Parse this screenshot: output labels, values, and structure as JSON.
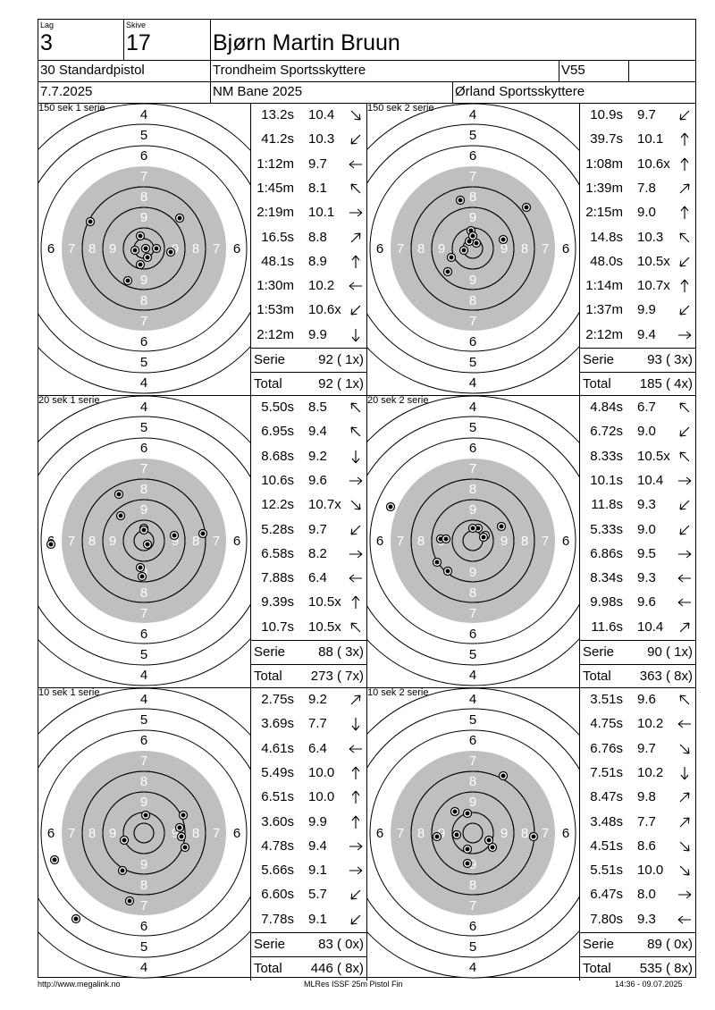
{
  "header": {
    "lag_label": "Lag",
    "lag_value": "3",
    "skive_label": "Skive",
    "skive_value": "17",
    "name": "Bjørn Martin Bruun",
    "class": "30 Standardpistol",
    "club": "Trondheim Sportsskyttere",
    "age_class": "V55",
    "date": "7.7.2025",
    "event": "NM Bane 2025",
    "organizer": "Ørland Sportsskyttere"
  },
  "ring_numbers": {
    "ring4": "4",
    "ring5": "5",
    "ring6": "6",
    "ring7": "7",
    "ring8": "8",
    "ring9": "9"
  },
  "series": [
    {
      "title": "150 sek 1 serie",
      "shots": [
        {
          "time": "13.2s",
          "value": "10.4",
          "dir": "down-right",
          "x": -4,
          "y": -14
        },
        {
          "time": "41.2s",
          "value": "10.3",
          "dir": "down-left",
          "x": -10,
          "y": 2
        },
        {
          "time": "1:12m",
          "value": "9.7",
          "dir": "left",
          "x": 30,
          "y": 4
        },
        {
          "time": "1:45m",
          "value": "8.1",
          "dir": "up-left",
          "x": -60,
          "y": -30
        },
        {
          "time": "2:19m",
          "value": "10.1",
          "dir": "right",
          "x": 14,
          "y": 0
        },
        {
          "time": "16.5s",
          "value": "8.8",
          "dir": "up-right",
          "x": 40,
          "y": -34
        },
        {
          "time": "48.1s",
          "value": "8.9",
          "dir": "up",
          "x": -18,
          "y": 36
        },
        {
          "time": "1:30m",
          "value": "10.2",
          "dir": "left",
          "x": -4,
          "y": 18
        },
        {
          "time": "1:53m",
          "value": "10.6x",
          "dir": "down-left",
          "x": 2,
          "y": 0
        },
        {
          "time": "2:12m",
          "value": "9.9",
          "dir": "down",
          "x": 4,
          "y": 10
        }
      ],
      "serie_label": "Serie",
      "serie_score": "92 ( 1x)",
      "total_label": "Total",
      "total_score": "92 ( 1x)"
    },
    {
      "title": "150 sek 2 serie",
      "shots": [
        {
          "time": "10.9s",
          "value": "9.7",
          "dir": "down-left",
          "x": -28,
          "y": 26
        },
        {
          "time": "39.7s",
          "value": "10.1",
          "dir": "up",
          "x": 34,
          "y": -10
        },
        {
          "time": "1:08m",
          "value": "10.6x",
          "dir": "up",
          "x": 4,
          "y": -6
        },
        {
          "time": "1:39m",
          "value": "7.8",
          "dir": "up-right",
          "x": 60,
          "y": -46
        },
        {
          "time": "2:15m",
          "value": "9.0",
          "dir": "up",
          "x": -14,
          "y": -54
        },
        {
          "time": "14.8s",
          "value": "10.3",
          "dir": "up-left",
          "x": -4,
          "y": -8
        },
        {
          "time": "48.0s",
          "value": "10.5x",
          "dir": "down-left",
          "x": -10,
          "y": 2
        },
        {
          "time": "1:14m",
          "value": "10.7x",
          "dir": "up",
          "x": -2,
          "y": -20
        },
        {
          "time": "1:37m",
          "value": "9.9",
          "dir": "down-left",
          "x": -24,
          "y": 10
        },
        {
          "time": "2:12m",
          "value": "9.4",
          "dir": "right",
          "x": 0,
          "y": -14
        }
      ],
      "serie_label": "Serie",
      "serie_score": "93 ( 3x)",
      "total_label": "Total",
      "total_score": "185 ( 4x)"
    },
    {
      "title": "20 sek 1 serie",
      "shots": [
        {
          "time": "5.50s",
          "value": "8.5",
          "dir": "up-left",
          "x": -28,
          "y": -52
        },
        {
          "time": "6.95s",
          "value": "9.4",
          "dir": "up-left",
          "x": -26,
          "y": -28
        },
        {
          "time": "8.68s",
          "value": "9.2",
          "dir": "down",
          "x": -4,
          "y": 30
        },
        {
          "time": "10.6s",
          "value": "9.6",
          "dir": "right",
          "x": 34,
          "y": -6
        },
        {
          "time": "12.2s",
          "value": "10.7x",
          "dir": "down-right",
          "x": 0,
          "y": -14
        },
        {
          "time": "5.28s",
          "value": "9.7",
          "dir": "down-left",
          "x": -2,
          "y": 40
        },
        {
          "time": "6.58s",
          "value": "8.2",
          "dir": "right",
          "x": 66,
          "y": -8
        },
        {
          "time": "7.88s",
          "value": "6.4",
          "dir": "left",
          "x": -104,
          "y": 4
        },
        {
          "time": "9.39s",
          "value": "10.5x",
          "dir": "up",
          "x": 4,
          "y": 4
        },
        {
          "time": "10.7s",
          "value": "10.5x",
          "dir": "up-left",
          "x": 0,
          "y": -12
        }
      ],
      "serie_label": "Serie",
      "serie_score": "88 ( 3x)",
      "total_label": "Total",
      "total_score": "273 ( 7x)"
    },
    {
      "title": "20 sek 2 serie",
      "shots": [
        {
          "time": "4.84s",
          "value": "6.7",
          "dir": "up-left",
          "x": -92,
          "y": -38
        },
        {
          "time": "6.72s",
          "value": "9.0",
          "dir": "down-left",
          "x": -40,
          "y": 24
        },
        {
          "time": "8.33s",
          "value": "10.5x",
          "dir": "up-left",
          "x": 6,
          "y": -14
        },
        {
          "time": "10.1s",
          "value": "10.4",
          "dir": "right",
          "x": 14,
          "y": -6
        },
        {
          "time": "11.8s",
          "value": "9.3",
          "dir": "down-left",
          "x": -36,
          "y": -2
        },
        {
          "time": "5.33s",
          "value": "9.0",
          "dir": "down-left",
          "x": 32,
          "y": -16
        },
        {
          "time": "6.86s",
          "value": "9.5",
          "dir": "right",
          "x": -28,
          "y": 34
        },
        {
          "time": "8.34s",
          "value": "9.3",
          "dir": "left",
          "x": -30,
          "y": -2
        },
        {
          "time": "9.98s",
          "value": "9.6",
          "dir": "left",
          "x": 0,
          "y": -14
        },
        {
          "time": "11.6s",
          "value": "10.4",
          "dir": "up-right",
          "x": 12,
          "y": -4
        }
      ],
      "serie_label": "Serie",
      "serie_score": "90 ( 1x)",
      "total_label": "Total",
      "total_score": "363 ( 8x)"
    },
    {
      "title": "10 sek 1 serie",
      "shots": [
        {
          "time": "2.75s",
          "value": "9.2",
          "dir": "up-right",
          "x": -22,
          "y": 8
        },
        {
          "time": "3.69s",
          "value": "7.7",
          "dir": "down",
          "x": -16,
          "y": 76
        },
        {
          "time": "4.61s",
          "value": "6.4",
          "dir": "left",
          "x": -100,
          "y": 30
        },
        {
          "time": "5.49s",
          "value": "10.0",
          "dir": "up",
          "x": 40,
          "y": -6
        },
        {
          "time": "6.51s",
          "value": "10.0",
          "dir": "up",
          "x": 2,
          "y": -20
        },
        {
          "time": "3.60s",
          "value": "9.9",
          "dir": "up",
          "x": 42,
          "y": 4
        },
        {
          "time": "4.78s",
          "value": "9.4",
          "dir": "right",
          "x": 46,
          "y": 16
        },
        {
          "time": "5.66s",
          "value": "9.1",
          "dir": "right",
          "x": -24,
          "y": 42
        },
        {
          "time": "6.60s",
          "value": "5.7",
          "dir": "down-left",
          "x": -76,
          "y": 96
        },
        {
          "time": "7.78s",
          "value": "9.1",
          "dir": "down-left",
          "x": 44,
          "y": -20
        }
      ],
      "serie_label": "Serie",
      "serie_score": "83 ( 0x)",
      "total_label": "Total",
      "total_score": "446 ( 8x)"
    },
    {
      "title": "10 sek 2 serie",
      "shots": [
        {
          "time": "3.51s",
          "value": "9.6",
          "dir": "up-left",
          "x": -20,
          "y": -24
        },
        {
          "time": "4.75s",
          "value": "10.2",
          "dir": "left",
          "x": 18,
          "y": 8
        },
        {
          "time": "6.76s",
          "value": "9.7",
          "dir": "down-right",
          "x": 22,
          "y": 16
        },
        {
          "time": "7.51s",
          "value": "10.2",
          "dir": "down",
          "x": -6,
          "y": 18
        },
        {
          "time": "8.47s",
          "value": "9.8",
          "dir": "up-right",
          "x": 34,
          "y": -64
        },
        {
          "time": "3.48s",
          "value": "7.7",
          "dir": "up-right",
          "x": 68,
          "y": 4
        },
        {
          "time": "4.51s",
          "value": "8.6",
          "dir": "down-right",
          "x": -40,
          "y": 4
        },
        {
          "time": "5.51s",
          "value": "10.0",
          "dir": "down-right",
          "x": -6,
          "y": -22
        },
        {
          "time": "6.47s",
          "value": "8.0",
          "dir": "right",
          "x": -6,
          "y": 34
        },
        {
          "time": "7.80s",
          "value": "9.3",
          "dir": "left",
          "x": -18,
          "y": 2
        }
      ],
      "serie_label": "Serie",
      "serie_score": "89 ( 0x)",
      "total_label": "Total",
      "total_score": "535 ( 8x)"
    }
  ],
  "footer": {
    "left": "http://www.megalink.no",
    "center": "MLRes ISSF 25m Pistol Fin",
    "right": "14:36 - 09.07.2025"
  }
}
